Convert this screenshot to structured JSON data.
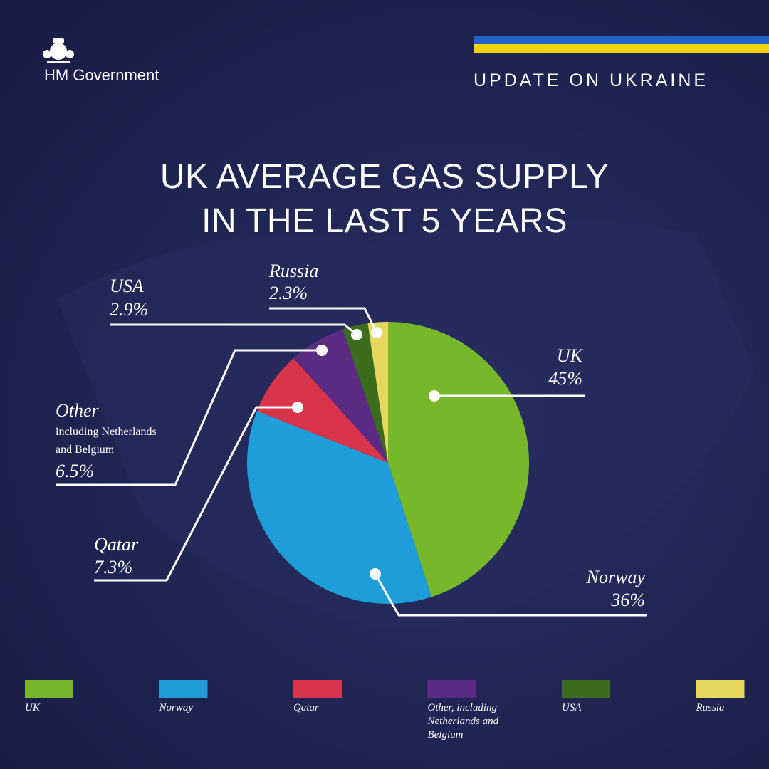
{
  "header": {
    "logo_text": "HM Government",
    "banner": "UPDATE ON UKRAINE"
  },
  "chart_data": {
    "type": "pie",
    "title": "UK AVERAGE GAS SUPPLY IN THE LAST 5 YEARS",
    "categories": [
      "UK",
      "Norway",
      "Qatar",
      "Other",
      "USA",
      "Russia"
    ],
    "values": [
      45,
      36,
      7.3,
      6.5,
      2.9,
      2.3
    ],
    "value_labels": [
      "45%",
      "36%",
      "7.3%",
      "6.5%",
      "2.9%",
      "2.3%"
    ],
    "colors": [
      "#77b82b",
      "#1f9dd9",
      "#d8344b",
      "#5a2a85",
      "#3c6d1f",
      "#e6d85c"
    ],
    "annotation": "including Netherlands and Belgium",
    "legend": [
      "UK",
      "Norway",
      "Qatar",
      "Other, including Netherlands and Belgium",
      "USA",
      "Russia"
    ]
  }
}
